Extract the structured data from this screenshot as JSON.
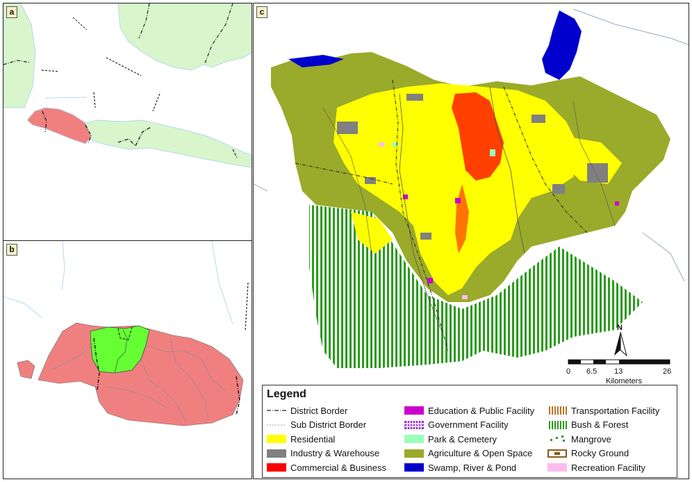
{
  "panels": {
    "a": {
      "label": "a"
    },
    "b": {
      "label": "b"
    },
    "c": {
      "label": "c"
    }
  },
  "north_arrow": {
    "label": "N"
  },
  "scale_bar": {
    "ticks": [
      "0",
      "6.5",
      "13",
      "26"
    ],
    "unit": "Kilometers"
  },
  "legend": {
    "title": "Legend",
    "items": [
      {
        "label": "District Border",
        "symbol": "dash-dot-line",
        "color": "#222222"
      },
      {
        "label": "Sub District Border",
        "symbol": "dotted-line",
        "color": "#999999"
      },
      {
        "label": "Residential",
        "symbol": "fill",
        "color": "#ffff00"
      },
      {
        "label": "Industry & Warehouse",
        "symbol": "fill",
        "color": "#808080"
      },
      {
        "label": "Commercial & Business",
        "symbol": "fill",
        "color": "#ff0000"
      },
      {
        "label": "Education & Public Facility",
        "symbol": "fill",
        "color": "#cc00cc"
      },
      {
        "label": "Government Facility",
        "symbol": "grid-hatch",
        "color": "#9933cc"
      },
      {
        "label": "Park & Cemetery",
        "symbol": "fill",
        "color": "#99ffbb"
      },
      {
        "label": "Agriculture & Open Space",
        "symbol": "fill",
        "color": "#9aaa2a"
      },
      {
        "label": "Swamp, River & Pond",
        "symbol": "fill",
        "color": "#0000cc"
      },
      {
        "label": "Transportation Facility",
        "symbol": "vertical-hatch",
        "color": "#b8742a"
      },
      {
        "label": "Bush & Forest",
        "symbol": "vertical-hatch",
        "color": "#2a9a1a"
      },
      {
        "label": "Mangrove",
        "symbol": "dots",
        "color": "#2a9a1a"
      },
      {
        "label": "Rocky Ground",
        "symbol": "outline-box",
        "color": "#8b5a1a"
      },
      {
        "label": "Recreation Facility",
        "symbol": "fill",
        "color": "#ffbbee"
      }
    ]
  },
  "colors": {
    "province_highlight": "#f08080",
    "neighbor_land": "#d8f5cc",
    "study_area": "#66ff33",
    "sea_outline": "#a8d0e8"
  }
}
